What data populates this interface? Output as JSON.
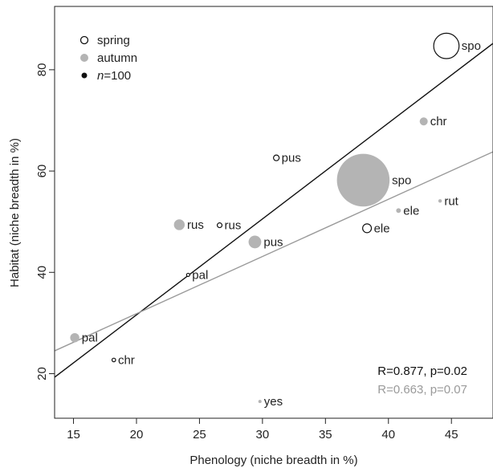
{
  "chart_data": {
    "type": "scatter",
    "xlabel": "Phenology (niche breadth in %)",
    "ylabel": "Habitat (niche breadth in %)",
    "xlim": [
      13.5,
      48.3
    ],
    "ylim": [
      11.2,
      92.5
    ],
    "xticks": [
      15,
      20,
      25,
      30,
      35,
      40,
      45
    ],
    "yticks": [
      20,
      40,
      60,
      80
    ],
    "legend_position": "top-left",
    "legend": [
      {
        "key": "spring",
        "label": "spring",
        "style": "open"
      },
      {
        "key": "autumn",
        "label": "autumn",
        "style": "filled-grey"
      },
      {
        "key": "n",
        "label_italic": "n",
        "label_rest": "=100",
        "style": "filled-black"
      }
    ],
    "series": [
      {
        "name": "spring",
        "color": "#111111",
        "fill": "#ffffff",
        "points": [
          {
            "label": "spo",
            "x": 44.6,
            "y": 84.7,
            "n": 1000
          },
          {
            "label": "pus",
            "x": 31.1,
            "y": 62.6,
            "n": 50
          },
          {
            "label": "rus",
            "x": 26.6,
            "y": 49.3,
            "n": 35
          },
          {
            "label": "ele",
            "x": 38.3,
            "y": 48.7,
            "n": 120
          },
          {
            "label": "pal",
            "x": 24.1,
            "y": 39.5,
            "n": 15
          },
          {
            "label": "chr",
            "x": 18.2,
            "y": 22.7,
            "n": 20
          }
        ],
        "fit": {
          "x": [
            13.5,
            48.3
          ],
          "y": [
            19.3,
            85.2
          ]
        },
        "stat": "R=0.877, p=0.02"
      },
      {
        "name": "autumn",
        "color": "#9a9a9a",
        "fill": "#b4b4b4",
        "points": [
          {
            "label": "spo",
            "x": 38.0,
            "y": 58.2,
            "n": 4300
          },
          {
            "label": "chr",
            "x": 42.8,
            "y": 69.8,
            "n": 100
          },
          {
            "label": "rut",
            "x": 44.1,
            "y": 54.1,
            "n": 20
          },
          {
            "label": "ele",
            "x": 40.8,
            "y": 52.2,
            "n": 35
          },
          {
            "label": "rus",
            "x": 23.4,
            "y": 49.4,
            "n": 180
          },
          {
            "label": "pus",
            "x": 29.4,
            "y": 46.0,
            "n": 250
          },
          {
            "label": "pal",
            "x": 15.1,
            "y": 27.1,
            "n": 130
          },
          {
            "label": "yes",
            "x": 29.8,
            "y": 14.5,
            "n": 15
          }
        ],
        "fit": {
          "x": [
            13.5,
            48.3
          ],
          "y": [
            24.5,
            63.8
          ]
        },
        "stat": "R=0.663, p=0.07"
      }
    ]
  }
}
